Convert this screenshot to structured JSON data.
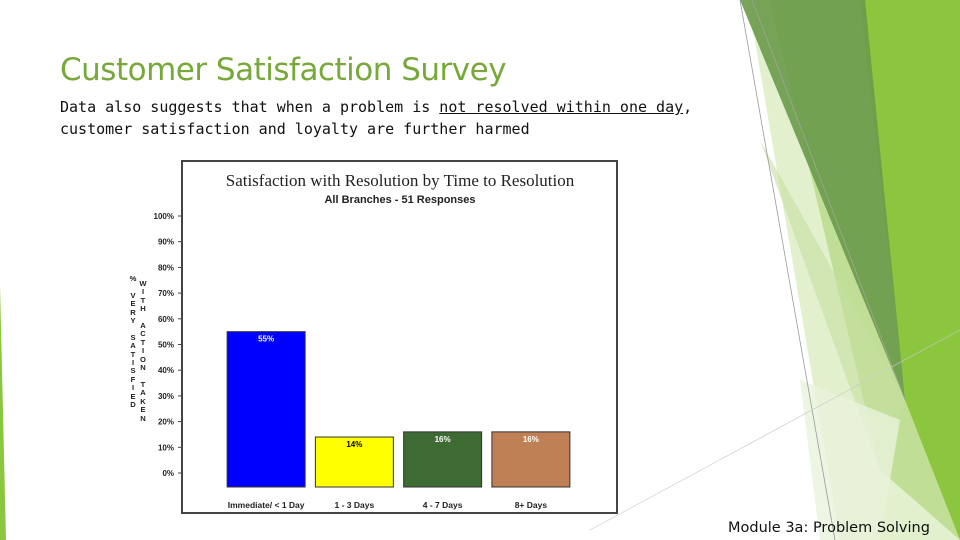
{
  "slide": {
    "title": "Customer Satisfaction Survey",
    "subtitle_parts": [
      "Data also suggests that when a problem is ",
      "not resolved within one day",
      ", customer satisfaction and loyalty are further harmed"
    ],
    "footer": "Module 3a: Problem Solving",
    "accent_color": "#77a83a"
  },
  "chart_data": {
    "type": "bar",
    "title": "Satisfaction with Resolution by Time to Resolution",
    "subtitle": "All Branches - 51 Responses",
    "ylabel_left": "% VERY SATISFIED",
    "ylabel_right": "WITH ACTION TAKEN",
    "categories": [
      "Immediate/ < 1 Day",
      "1 - 3 Days",
      "4 - 7 Days",
      "8+ Days"
    ],
    "values": [
      55,
      14,
      16,
      16
    ],
    "data_labels": [
      "55%",
      "14%",
      "16%",
      "16%"
    ],
    "bar_colors": [
      "#0000ff",
      "#ffff00",
      "#3e6b33",
      "#c08055"
    ],
    "ylim": [
      0,
      100
    ],
    "y_ticks": [
      "0%",
      "10%",
      "20%",
      "30%",
      "40%",
      "50%",
      "60%",
      "70%",
      "80%",
      "90%",
      "100%"
    ],
    "grid": false
  }
}
